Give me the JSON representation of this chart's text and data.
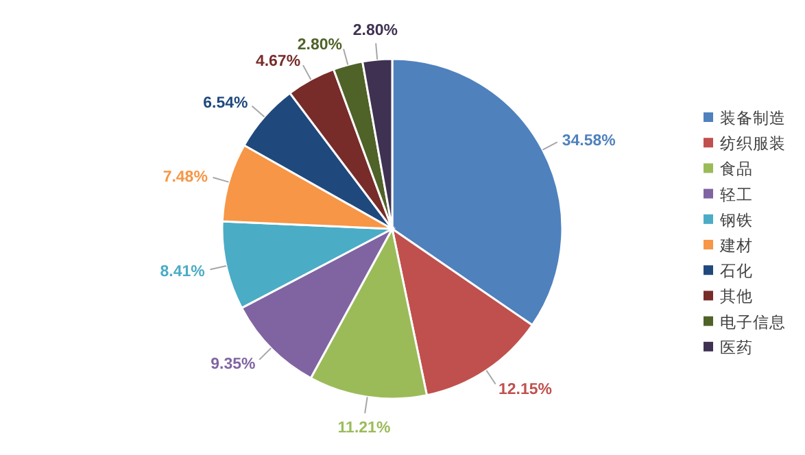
{
  "chart_data": {
    "type": "pie",
    "categories": [
      "装备制造",
      "纺织服装",
      "食品",
      "轻工",
      "钢铁",
      "建材",
      "石化",
      "其他",
      "电子信息",
      "医药"
    ],
    "values": [
      34.58,
      12.15,
      11.21,
      9.35,
      8.41,
      7.48,
      6.54,
      4.67,
      2.8,
      2.8
    ],
    "colors": [
      "#4f81bd",
      "#c0504d",
      "#9bbb59",
      "#8064a2",
      "#4bacc6",
      "#f79646",
      "#1f497d",
      "#772c2a",
      "#4f6228",
      "#3f3151"
    ],
    "value_labels": [
      "34.58%",
      "12.15%",
      "11.21%",
      "9.35%",
      "8.41%",
      "7.48%",
      "6.54%",
      "4.67%",
      "2.80%",
      "2.80%"
    ],
    "legend": "right"
  }
}
